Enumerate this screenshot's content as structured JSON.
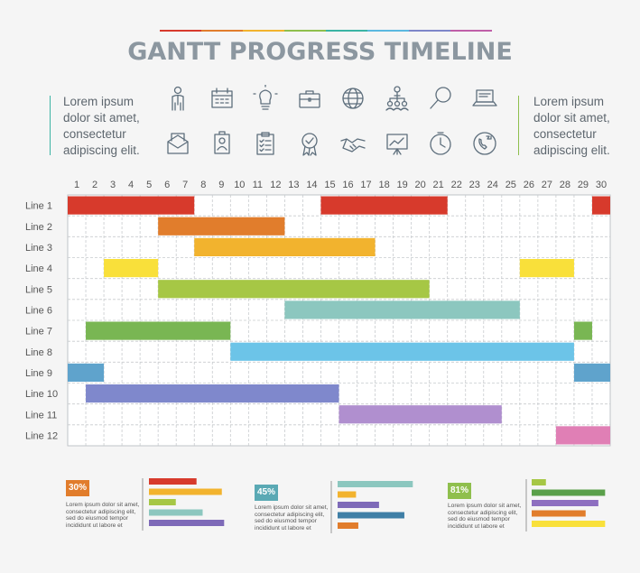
{
  "header": {
    "title": "GANTT PROGRESS TIMELINE",
    "rainbow_colors": [
      "#d73a2c",
      "#e17d2c",
      "#f2b32e",
      "#8fbf4d",
      "#3bb4a4",
      "#5bb8e0",
      "#7e86c9",
      "#c05fa8"
    ]
  },
  "intro_left": {
    "text": "Lorem ipsum\ndolor sit amet,\nconsectetur\nadipiscing elit.",
    "accent": "#3bb4a4"
  },
  "intro_right": {
    "text": "Lorem ipsum\ndolor sit amet,\nconsectetur\nadipiscing elit.",
    "accent": "#8fbf4d"
  },
  "icons": [
    "businessman-icon",
    "calendar-icon",
    "lightbulb-icon",
    "briefcase-icon",
    "globe-icon",
    "org-chart-icon",
    "magnifier-icon",
    "laptop-icon",
    "envelope-icon",
    "id-badge-icon",
    "checklist-icon",
    "award-medal-icon",
    "handshake-icon",
    "presentation-board-icon",
    "clock-icon",
    "support-phone-icon"
  ],
  "chart_data": {
    "type": "gantt",
    "title": "GANTT PROGRESS TIMELINE",
    "x": [
      1,
      2,
      3,
      4,
      5,
      6,
      7,
      8,
      9,
      10,
      11,
      12,
      13,
      14,
      15,
      16,
      17,
      18,
      19,
      20,
      21,
      22,
      23,
      24,
      25,
      26,
      27,
      28,
      29,
      30
    ],
    "grid": true,
    "rows": [
      {
        "name": "Line 1",
        "color": "#d73a2c",
        "segments": [
          [
            1,
            7
          ],
          [
            15,
            21
          ],
          [
            30,
            30
          ]
        ]
      },
      {
        "name": "Line 2",
        "color": "#e17d2c",
        "segments": [
          [
            6,
            12
          ]
        ]
      },
      {
        "name": "Line 3",
        "color": "#f2b32e",
        "segments": [
          [
            8,
            17
          ]
        ]
      },
      {
        "name": "Line 4",
        "color": "#f9e03a",
        "segments": [
          [
            3,
            5
          ],
          [
            26,
            28
          ]
        ]
      },
      {
        "name": "Line 5",
        "color": "#a6c745",
        "segments": [
          [
            6,
            20
          ]
        ]
      },
      {
        "name": "Line 6",
        "color": "#8cc7bf",
        "segments": [
          [
            13,
            25
          ]
        ]
      },
      {
        "name": "Line 7",
        "color": "#79b653",
        "segments": [
          [
            2,
            9
          ],
          [
            29,
            29
          ]
        ]
      },
      {
        "name": "Line 8",
        "color": "#6cc4e8",
        "segments": [
          [
            10,
            28
          ]
        ]
      },
      {
        "name": "Line 9",
        "color": "#5fa3cc",
        "segments": [
          [
            1,
            2
          ],
          [
            29,
            30
          ]
        ]
      },
      {
        "name": "Line 10",
        "color": "#7f88cc",
        "segments": [
          [
            2,
            15
          ]
        ]
      },
      {
        "name": "Line 11",
        "color": "#b08fcf",
        "segments": [
          [
            16,
            24
          ]
        ]
      },
      {
        "name": "Line 12",
        "color": "#e07fb5",
        "segments": [
          [
            28,
            30
          ]
        ]
      }
    ]
  },
  "widgets": [
    {
      "percent": "30%",
      "flag_color": "#e17d2c",
      "text": "Lorem ipsum dolor sit amet,\nconsectetur adipiscing elit,\nsed do eiusmod tempor\nincididunt ut labore et",
      "bars": [
        {
          "value": 0.62,
          "color": "#d73a2c"
        },
        {
          "value": 0.95,
          "color": "#f2b32e"
        },
        {
          "value": 0.35,
          "color": "#a6c745"
        },
        {
          "value": 0.7,
          "color": "#8cc7bf"
        },
        {
          "value": 0.98,
          "color": "#7e6ab8"
        }
      ]
    },
    {
      "percent": "45%",
      "flag_color": "#5aa9b4",
      "text": "Lorem ipsum dolor sit amet,\nconsectetur adipiscing elit,\nsed do eiusmod tempor\nincididunt ut labore et",
      "bars": [
        {
          "value": 0.98,
          "color": "#8cc7bf"
        },
        {
          "value": 0.24,
          "color": "#f2b32e"
        },
        {
          "value": 0.54,
          "color": "#7e6ab8"
        },
        {
          "value": 0.87,
          "color": "#3f7fa6"
        },
        {
          "value": 0.27,
          "color": "#e17d2c"
        }
      ]
    },
    {
      "percent": "81%",
      "flag_color": "#8fbf4d",
      "text": "Lorem ipsum dolor sit amet,\nconsectetur adipiscing elit,\nsed do eiusmod tempor\nincididunt ut labore et",
      "bars": [
        {
          "value": 0.19,
          "color": "#a6c745"
        },
        {
          "value": 0.98,
          "color": "#5aa04a"
        },
        {
          "value": 0.89,
          "color": "#8e6fc0"
        },
        {
          "value": 0.72,
          "color": "#e17d2c"
        },
        {
          "value": 0.98,
          "color": "#f9e03a"
        }
      ]
    }
  ]
}
